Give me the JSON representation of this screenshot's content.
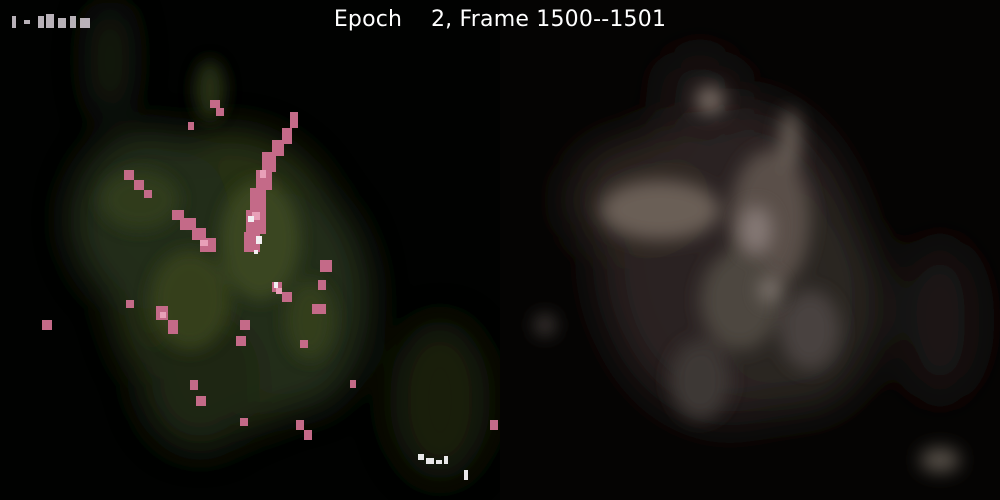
{
  "title": "Epoch    2, Frame 1500--1501",
  "colors": {
    "background": "#000000",
    "title_text": "#ffffff",
    "cloud_green": "#3c4a1e",
    "stream_pink": "#d46a8c",
    "hot_white": "#f2eef2",
    "smooth_gray": "#8a7a70"
  }
}
